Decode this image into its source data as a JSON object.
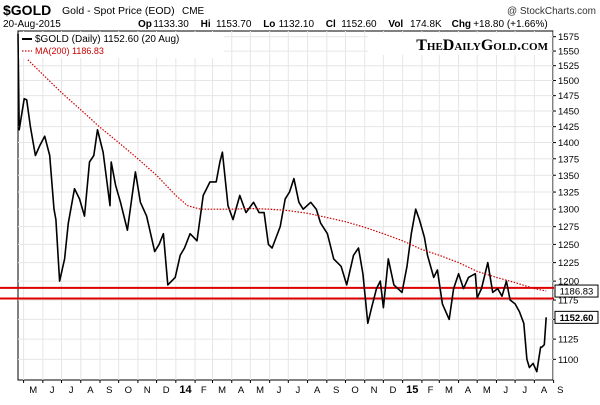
{
  "header": {
    "symbol": "$GOLD",
    "description": "Gold - Spot Price (EOD)",
    "exchange": "CME",
    "copyright": "@ StockCharts.com",
    "date": "20-Aug-2015",
    "quote": [
      {
        "label": "Op",
        "value": "1133.30"
      },
      {
        "label": "Hi",
        "value": "1153.70"
      },
      {
        "label": "Lo",
        "value": "1132.10"
      },
      {
        "label": "Cl",
        "value": "1152.60"
      },
      {
        "label": "Vol",
        "value": "174.8K"
      },
      {
        "label": "Chg",
        "value": "+18.80 (+1.66%)"
      }
    ]
  },
  "legend": {
    "price_label": "$GOLD (Daily) 1152.60 (20 Aug)",
    "ma_label": "MA(200) 1186.83"
  },
  "watermark": "TheDailyGold.com",
  "colors": {
    "price_line": "#000000",
    "ma_line": "#cc0000",
    "horizontal_lines": "#dd0000",
    "grid": "#e6e6e6",
    "axis_text": "#000000"
  },
  "chart_data": {
    "type": "line",
    "y_scale": "log",
    "ylim": [
      1075,
      1585
    ],
    "x_range": [
      "2013-04-22",
      "2015-08-31"
    ],
    "y_ticks": [
      1100,
      1125,
      1150,
      1175,
      1200,
      1225,
      1250,
      1275,
      1300,
      1325,
      1350,
      1375,
      1400,
      1425,
      1450,
      1475,
      1500,
      1525,
      1550,
      1575
    ],
    "x_ticks": [
      {
        "date": "2013-05-01",
        "label": "M"
      },
      {
        "date": "2013-06-01",
        "label": "J"
      },
      {
        "date": "2013-07-01",
        "label": "J"
      },
      {
        "date": "2013-08-01",
        "label": "A"
      },
      {
        "date": "2013-09-01",
        "label": "S"
      },
      {
        "date": "2013-10-01",
        "label": "O"
      },
      {
        "date": "2013-11-01",
        "label": "N"
      },
      {
        "date": "2013-12-01",
        "label": "D"
      },
      {
        "date": "2014-01-01",
        "label": "14",
        "bold": true
      },
      {
        "date": "2014-02-01",
        "label": "F"
      },
      {
        "date": "2014-03-01",
        "label": "M"
      },
      {
        "date": "2014-04-01",
        "label": "A"
      },
      {
        "date": "2014-05-01",
        "label": "M"
      },
      {
        "date": "2014-06-01",
        "label": "J"
      },
      {
        "date": "2014-07-01",
        "label": "J"
      },
      {
        "date": "2014-08-01",
        "label": "A"
      },
      {
        "date": "2014-09-01",
        "label": "S"
      },
      {
        "date": "2014-10-01",
        "label": "O"
      },
      {
        "date": "2014-11-01",
        "label": "N"
      },
      {
        "date": "2014-12-01",
        "label": "D"
      },
      {
        "date": "2015-01-01",
        "label": "15",
        "bold": true
      },
      {
        "date": "2015-02-01",
        "label": "F"
      },
      {
        "date": "2015-03-01",
        "label": "M"
      },
      {
        "date": "2015-04-01",
        "label": "A"
      },
      {
        "date": "2015-05-01",
        "label": "M"
      },
      {
        "date": "2015-06-01",
        "label": "J"
      },
      {
        "date": "2015-07-01",
        "label": "J"
      },
      {
        "date": "2015-08-01",
        "label": "A"
      },
      {
        "date": "2015-09-01",
        "label": "S"
      }
    ],
    "grid": true,
    "legend_position": "top-left",
    "price_tags": [
      {
        "value": 1186.83,
        "label": "1186.83",
        "series": "MA(200)"
      },
      {
        "value": 1152.6,
        "label": "1152.60",
        "series": "$GOLD"
      }
    ],
    "horizontal_lines": [
      {
        "value": 1191,
        "note": "support/resistance"
      },
      {
        "value": 1177,
        "note": "support/resistance"
      }
    ],
    "series": [
      {
        "name": "$GOLD (Daily)",
        "style": "solid",
        "points": [
          [
            "2013-04-22",
            1580
          ],
          [
            "2013-04-24",
            1420
          ],
          [
            "2013-05-02",
            1470
          ],
          [
            "2013-05-06",
            1468
          ],
          [
            "2013-05-12",
            1425
          ],
          [
            "2013-05-20",
            1380
          ],
          [
            "2013-05-27",
            1395
          ],
          [
            "2013-06-04",
            1410
          ],
          [
            "2013-06-12",
            1380
          ],
          [
            "2013-06-19",
            1300
          ],
          [
            "2013-06-22",
            1285
          ],
          [
            "2013-06-28",
            1200
          ],
          [
            "2013-07-06",
            1230
          ],
          [
            "2013-07-12",
            1280
          ],
          [
            "2013-07-22",
            1330
          ],
          [
            "2013-07-30",
            1315
          ],
          [
            "2013-08-07",
            1290
          ],
          [
            "2013-08-15",
            1370
          ],
          [
            "2013-08-22",
            1380
          ],
          [
            "2013-08-28",
            1420
          ],
          [
            "2013-09-06",
            1385
          ],
          [
            "2013-09-17",
            1305
          ],
          [
            "2013-09-19",
            1370
          ],
          [
            "2013-09-26",
            1335
          ],
          [
            "2013-10-04",
            1310
          ],
          [
            "2013-10-15",
            1270
          ],
          [
            "2013-10-28",
            1355
          ],
          [
            "2013-11-05",
            1310
          ],
          [
            "2013-11-15",
            1290
          ],
          [
            "2013-11-28",
            1240
          ],
          [
            "2013-12-05",
            1250
          ],
          [
            "2013-12-12",
            1265
          ],
          [
            "2013-12-19",
            1195
          ],
          [
            "2013-12-31",
            1205
          ],
          [
            "2014-01-08",
            1235
          ],
          [
            "2014-01-15",
            1245
          ],
          [
            "2014-01-24",
            1265
          ],
          [
            "2014-02-04",
            1255
          ],
          [
            "2014-02-14",
            1320
          ],
          [
            "2014-02-25",
            1340
          ],
          [
            "2014-03-07",
            1340
          ],
          [
            "2014-03-13",
            1370
          ],
          [
            "2014-03-17",
            1385
          ],
          [
            "2014-03-26",
            1305
          ],
          [
            "2014-04-03",
            1285
          ],
          [
            "2014-04-14",
            1320
          ],
          [
            "2014-04-24",
            1295
          ],
          [
            "2014-05-06",
            1310
          ],
          [
            "2014-05-15",
            1295
          ],
          [
            "2014-05-23",
            1295
          ],
          [
            "2014-05-30",
            1250
          ],
          [
            "2014-06-05",
            1245
          ],
          [
            "2014-06-18",
            1275
          ],
          [
            "2014-06-26",
            1315
          ],
          [
            "2014-07-03",
            1325
          ],
          [
            "2014-07-10",
            1345
          ],
          [
            "2014-07-18",
            1310
          ],
          [
            "2014-07-25",
            1300
          ],
          [
            "2014-08-06",
            1310
          ],
          [
            "2014-08-15",
            1300
          ],
          [
            "2014-08-22",
            1280
          ],
          [
            "2014-09-02",
            1265
          ],
          [
            "2014-09-12",
            1230
          ],
          [
            "2014-09-24",
            1220
          ],
          [
            "2014-10-03",
            1195
          ],
          [
            "2014-10-14",
            1235
          ],
          [
            "2014-10-22",
            1245
          ],
          [
            "2014-10-29",
            1210
          ],
          [
            "2014-11-06",
            1145
          ],
          [
            "2014-11-12",
            1165
          ],
          [
            "2014-11-20",
            1190
          ],
          [
            "2014-11-26",
            1200
          ],
          [
            "2014-12-01",
            1165
          ],
          [
            "2014-12-09",
            1230
          ],
          [
            "2014-12-18",
            1195
          ],
          [
            "2014-12-31",
            1185
          ],
          [
            "2015-01-08",
            1220
          ],
          [
            "2015-01-15",
            1265
          ],
          [
            "2015-01-22",
            1300
          ],
          [
            "2015-01-28",
            1285
          ],
          [
            "2015-02-05",
            1260
          ],
          [
            "2015-02-10",
            1235
          ],
          [
            "2015-02-20",
            1205
          ],
          [
            "2015-02-26",
            1215
          ],
          [
            "2015-03-06",
            1170
          ],
          [
            "2015-03-17",
            1150
          ],
          [
            "2015-03-24",
            1190
          ],
          [
            "2015-04-01",
            1210
          ],
          [
            "2015-04-09",
            1190
          ],
          [
            "2015-04-17",
            1205
          ],
          [
            "2015-04-28",
            1210
          ],
          [
            "2015-05-01",
            1178
          ],
          [
            "2015-05-08",
            1190
          ],
          [
            "2015-05-18",
            1225
          ],
          [
            "2015-05-26",
            1185
          ],
          [
            "2015-06-03",
            1190
          ],
          [
            "2015-06-10",
            1180
          ],
          [
            "2015-06-17",
            1200
          ],
          [
            "2015-06-23",
            1175
          ],
          [
            "2015-07-01",
            1170
          ],
          [
            "2015-07-08",
            1160
          ],
          [
            "2015-07-15",
            1145
          ],
          [
            "2015-07-20",
            1100
          ],
          [
            "2015-07-24",
            1090
          ],
          [
            "2015-07-30",
            1095
          ],
          [
            "2015-08-05",
            1085
          ],
          [
            "2015-08-11",
            1115
          ],
          [
            "2015-08-13",
            1115
          ],
          [
            "2015-08-17",
            1118
          ],
          [
            "2015-08-20",
            1152.6
          ]
        ]
      },
      {
        "name": "MA(200)",
        "style": "dotted",
        "points": [
          [
            "2013-05-08",
            1535
          ],
          [
            "2013-06-01",
            1510
          ],
          [
            "2013-07-01",
            1480
          ],
          [
            "2013-08-01",
            1452
          ],
          [
            "2013-09-01",
            1424
          ],
          [
            "2013-10-01",
            1400
          ],
          [
            "2013-11-01",
            1375
          ],
          [
            "2013-12-01",
            1350
          ],
          [
            "2014-01-01",
            1320
          ],
          [
            "2014-01-20",
            1305
          ],
          [
            "2014-02-10",
            1300
          ],
          [
            "2014-03-01",
            1300
          ],
          [
            "2014-04-01",
            1300
          ],
          [
            "2014-05-01",
            1301
          ],
          [
            "2014-06-01",
            1300
          ],
          [
            "2014-07-01",
            1298
          ],
          [
            "2014-08-01",
            1294
          ],
          [
            "2014-09-01",
            1288
          ],
          [
            "2014-10-01",
            1282
          ],
          [
            "2014-11-01",
            1274
          ],
          [
            "2014-12-01",
            1265
          ],
          [
            "2015-01-01",
            1255
          ],
          [
            "2015-02-01",
            1243
          ],
          [
            "2015-03-01",
            1235
          ],
          [
            "2015-04-01",
            1225
          ],
          [
            "2015-05-01",
            1213
          ],
          [
            "2015-06-01",
            1205
          ],
          [
            "2015-07-01",
            1198
          ],
          [
            "2015-08-01",
            1190
          ],
          [
            "2015-08-20",
            1186.83
          ]
        ]
      }
    ]
  }
}
